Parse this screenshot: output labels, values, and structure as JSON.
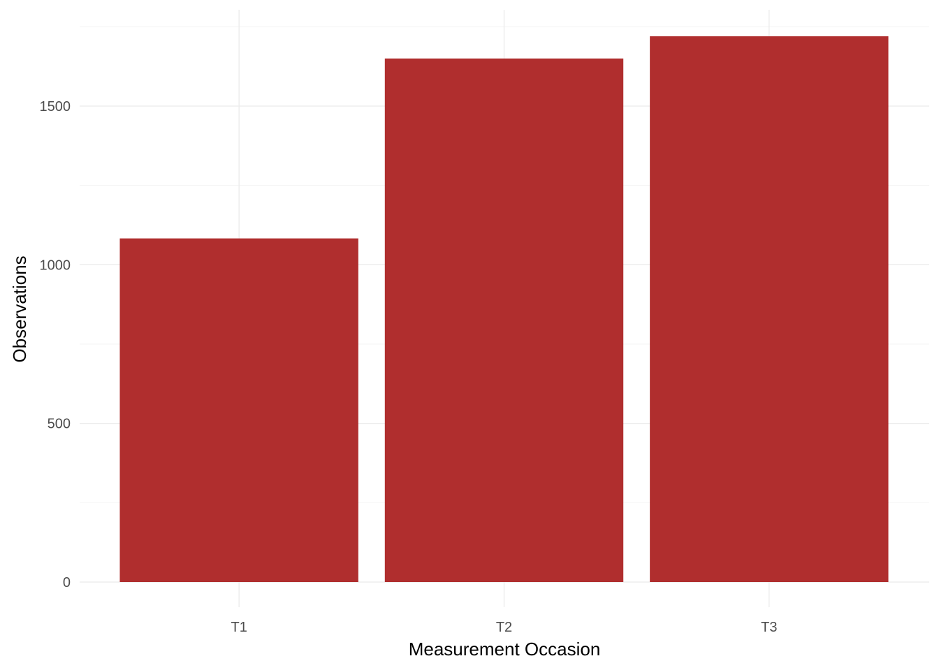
{
  "chart_data": {
    "type": "bar",
    "categories": [
      "T1",
      "T2",
      "T3"
    ],
    "values": [
      1083,
      1650,
      1720
    ],
    "title": "",
    "xlabel": "Measurement Occasion",
    "ylabel": "Observations",
    "ylim": [
      0,
      1760
    ],
    "yticks": [
      0,
      500,
      1000,
      1500
    ],
    "bar_color": "#b02e2e",
    "grid": true,
    "legend": "none"
  }
}
